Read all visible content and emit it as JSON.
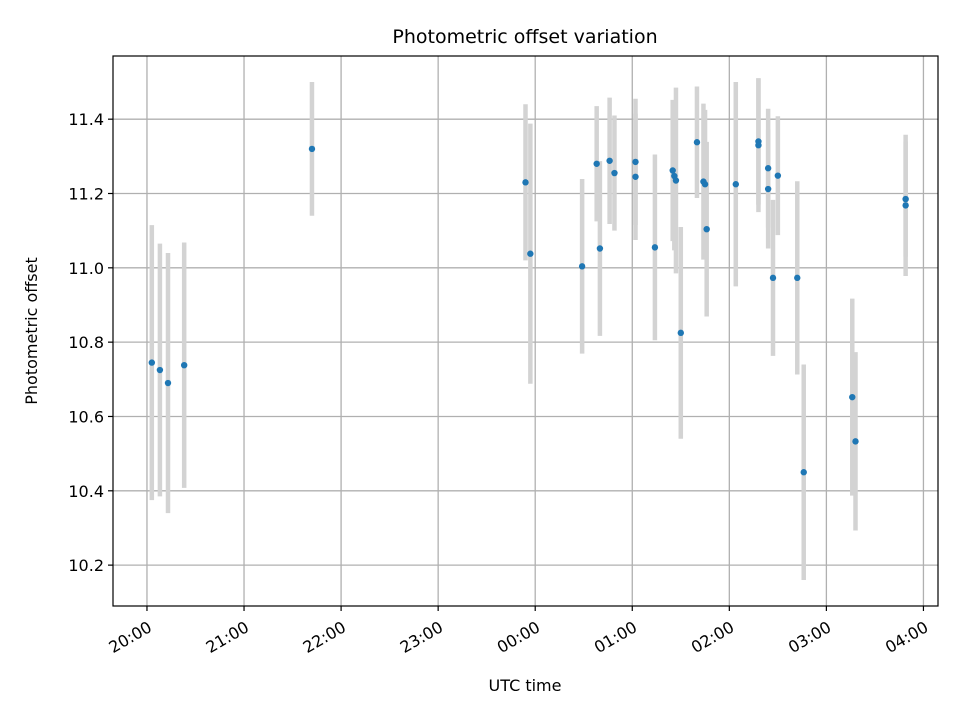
{
  "chart_data": {
    "type": "scatter",
    "title": "Photometric offset variation",
    "xlabel": "UTC time",
    "ylabel": "Photometric offset",
    "xlim": [
      "19:39",
      "04:09"
    ],
    "ylim": [
      10.09,
      11.57
    ],
    "grid": true,
    "legend": "none",
    "x_ticks": [
      "20:00",
      "21:00",
      "22:00",
      "23:00",
      "00:00",
      "01:00",
      "02:00",
      "03:00",
      "04:00"
    ],
    "y_ticks": [
      "10.2",
      "10.4",
      "10.6",
      "10.8",
      "11.0",
      "11.2",
      "11.4"
    ],
    "marker_color": "#1f77b4",
    "errorbar_color": "#d3d3d3",
    "points": [
      {
        "time": "20:03",
        "value": 10.745,
        "error": 0.37
      },
      {
        "time": "20:08",
        "value": 10.725,
        "error": 0.34
      },
      {
        "time": "20:13",
        "value": 10.69,
        "error": 0.35
      },
      {
        "time": "20:23",
        "value": 10.738,
        "error": 0.33
      },
      {
        "time": "21:42",
        "value": 11.32,
        "error": 0.18
      },
      {
        "time": "23:54",
        "value": 11.23,
        "error": 0.21
      },
      {
        "time": "23:57",
        "value": 11.038,
        "error": 0.35
      },
      {
        "time": "00:29",
        "value": 11.004,
        "error": 0.235
      },
      {
        "time": "00:38",
        "value": 11.28,
        "error": 0.155
      },
      {
        "time": "00:40",
        "value": 11.052,
        "error": 0.235
      },
      {
        "time": "00:46",
        "value": 11.288,
        "error": 0.17
      },
      {
        "time": "00:49",
        "value": 11.255,
        "error": 0.155
      },
      {
        "time": "01:02",
        "value": 11.285,
        "error": 0.17
      },
      {
        "time": "01:02",
        "value": 11.245,
        "error": 0.17
      },
      {
        "time": "01:14",
        "value": 11.055,
        "error": 0.25
      },
      {
        "time": "01:25",
        "value": 11.262,
        "error": 0.19
      },
      {
        "time": "01:26",
        "value": 11.247,
        "error": 0.2
      },
      {
        "time": "01:27",
        "value": 11.235,
        "error": 0.25
      },
      {
        "time": "01:30",
        "value": 10.825,
        "error": 0.285
      },
      {
        "time": "01:40",
        "value": 11.338,
        "error": 0.15
      },
      {
        "time": "01:44",
        "value": 11.232,
        "error": 0.21
      },
      {
        "time": "01:45",
        "value": 11.225,
        "error": 0.2
      },
      {
        "time": "01:46",
        "value": 11.104,
        "error": 0.235
      },
      {
        "time": "02:04",
        "value": 11.225,
        "error": 0.275
      },
      {
        "time": "02:18",
        "value": 11.34,
        "error": 0.17
      },
      {
        "time": "02:18",
        "value": 11.33,
        "error": 0.18
      },
      {
        "time": "02:24",
        "value": 11.268,
        "error": 0.16
      },
      {
        "time": "02:24",
        "value": 11.212,
        "error": 0.16
      },
      {
        "time": "02:27",
        "value": 10.973,
        "error": 0.21
      },
      {
        "time": "02:30",
        "value": 11.248,
        "error": 0.16
      },
      {
        "time": "02:42",
        "value": 10.973,
        "error": 0.26
      },
      {
        "time": "02:46",
        "value": 10.45,
        "error": 0.29
      },
      {
        "time": "03:16",
        "value": 10.652,
        "error": 0.265
      },
      {
        "time": "03:18",
        "value": 10.533,
        "error": 0.24
      },
      {
        "time": "03:49",
        "value": 11.168,
        "error": 0.19
      },
      {
        "time": "03:49",
        "value": 11.185,
        "error": 0.155
      }
    ]
  }
}
